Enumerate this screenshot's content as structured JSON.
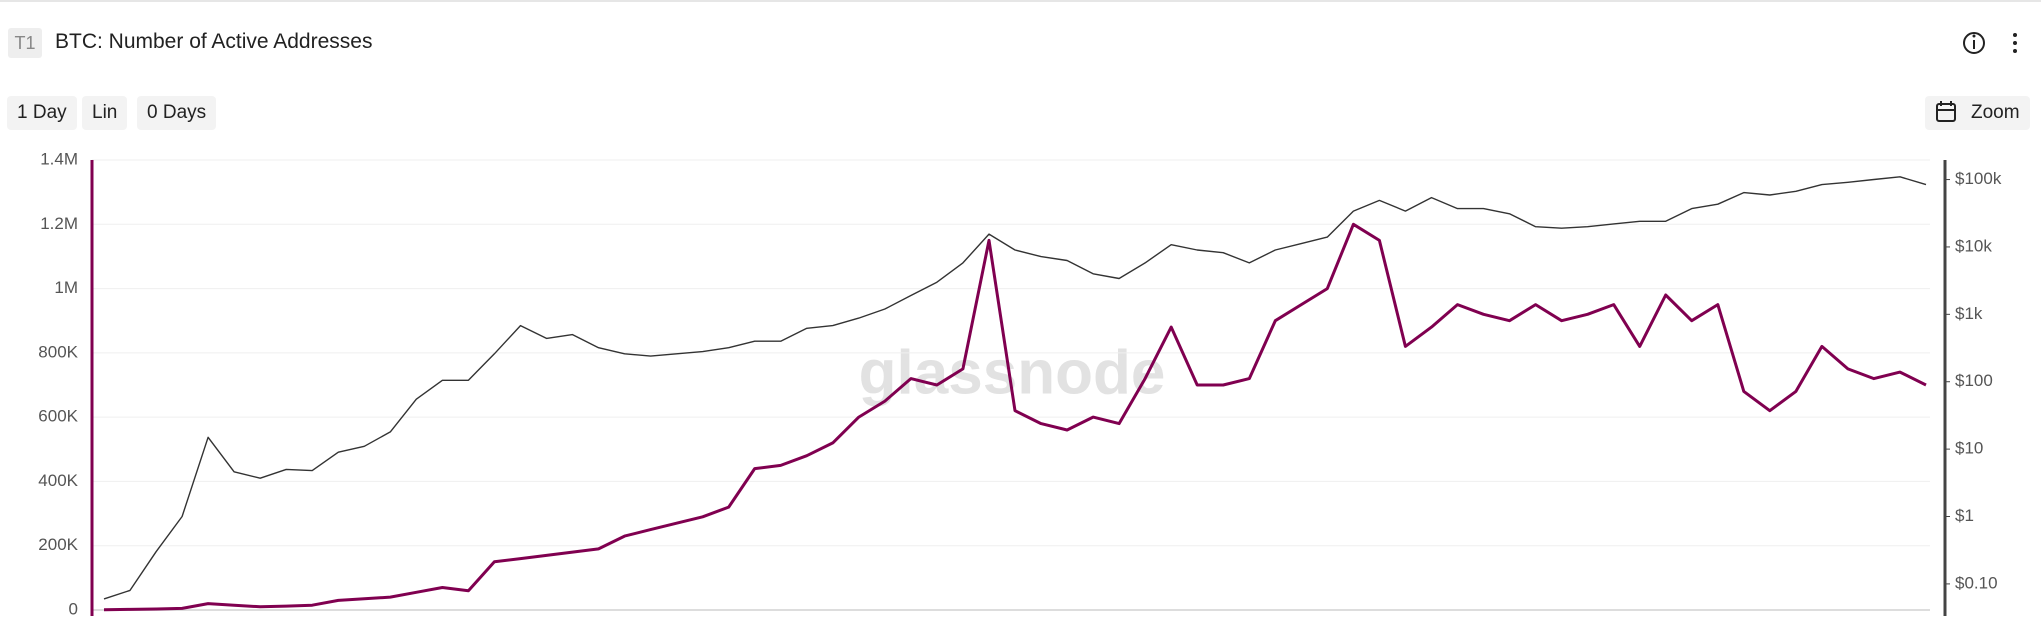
{
  "header": {
    "badge": "T1",
    "title": "BTC: Number of Active Addresses"
  },
  "controls": {
    "resolution": "1 Day",
    "scale": "Lin",
    "average": "0 Days",
    "zoom": "Zoom"
  },
  "watermark": "glassnode",
  "chart_data": {
    "type": "line",
    "ylim": [
      0,
      1400000
    ],
    "yticks": [
      0,
      {
        "value": 200000,
        "label": "200K"
      },
      {
        "value": 400000,
        "label": "400K"
      },
      {
        "value": 600000,
        "label": "600K"
      },
      {
        "value": 800000,
        "label": "800K"
      },
      {
        "value": 1000000,
        "label": "1M"
      },
      {
        "value": 1200000,
        "label": "1.2M"
      },
      {
        "value": 1400000,
        "label": "1.4M"
      }
    ],
    "y2lim": [
      0.041,
      195000
    ],
    "y2log": true,
    "y2ticks": [
      {
        "value": 0.1,
        "label": "$0.10"
      },
      {
        "value": 1,
        "label": "$1"
      },
      {
        "value": 10,
        "label": "$10"
      },
      {
        "value": 100,
        "label": "$100"
      },
      {
        "value": 1000,
        "label": "$1k"
      },
      {
        "value": 10000,
        "label": "$10k"
      },
      {
        "value": 100000,
        "label": "$100k"
      }
    ],
    "grid": true,
    "series": [
      {
        "color": "#800050",
        "values": [
          1000,
          2000,
          3000,
          5000,
          20000,
          15000,
          10000,
          12000,
          15000,
          30000,
          35000,
          40000,
          55000,
          70000,
          60000,
          150000,
          160000,
          170000,
          180000,
          190000,
          230000,
          250000,
          270000,
          290000,
          320000,
          440000,
          450000,
          480000,
          520000,
          600000,
          650000,
          720000,
          700000,
          750000,
          1150000,
          620000,
          580000,
          560000,
          600000,
          580000,
          720000,
          880000,
          700000,
          700000,
          720000,
          900000,
          950000,
          1000000,
          1200000,
          1150000,
          820000,
          880000,
          950000,
          920000,
          900000,
          950000,
          900000,
          920000,
          950000,
          820000,
          980000,
          900000,
          950000,
          680000,
          620000,
          680000,
          820000,
          750000,
          720000,
          740000,
          700000
        ]
      },
      {
        "color": "#333333",
        "axis": "y2",
        "values": [
          0.06,
          0.08,
          0.3,
          1,
          15,
          4.6,
          3.7,
          5,
          4.8,
          9,
          11,
          18,
          55,
          105,
          105,
          260,
          680,
          440,
          500,
          320,
          260,
          240,
          260,
          280,
          320,
          400,
          400,
          620,
          680,
          880,
          1200,
          1900,
          3000,
          5800,
          15500,
          9000,
          7200,
          6300,
          4000,
          3400,
          5800,
          10800,
          9000,
          8200,
          5800,
          9000,
          11200,
          14000,
          34000,
          49000,
          34000,
          54000,
          37000,
          37000,
          31000,
          20000,
          19000,
          20000,
          22000,
          24000,
          24000,
          37000,
          43000,
          64000,
          59000,
          67000,
          84000,
          91000,
          100000,
          110000,
          84000
        ]
      }
    ]
  }
}
